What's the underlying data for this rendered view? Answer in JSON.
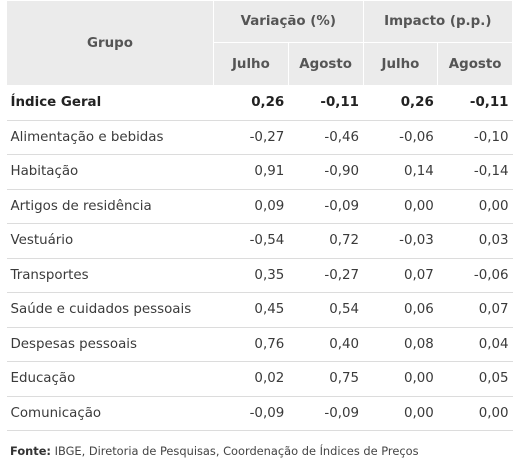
{
  "table": {
    "header": {
      "grupo": "Grupo",
      "variacao": "Variação (%)",
      "impacto": "Impacto (p.p.)",
      "julho": "Julho",
      "agosto": "Agosto"
    },
    "rows": [
      {
        "grupo": "Índice Geral",
        "var_julho": "0,26",
        "var_agosto": "-0,11",
        "imp_julho": "0,26",
        "imp_agosto": "-0,11"
      },
      {
        "grupo": "Alimentação e bebidas",
        "var_julho": "-0,27",
        "var_agosto": "-0,46",
        "imp_julho": "-0,06",
        "imp_agosto": "-0,10"
      },
      {
        "grupo": "Habitação",
        "var_julho": "0,91",
        "var_agosto": "-0,90",
        "imp_julho": "0,14",
        "imp_agosto": "-0,14"
      },
      {
        "grupo": "Artigos de residência",
        "var_julho": "0,09",
        "var_agosto": "-0,09",
        "imp_julho": "0,00",
        "imp_agosto": "0,00"
      },
      {
        "grupo": "Vestuário",
        "var_julho": "-0,54",
        "var_agosto": "0,72",
        "imp_julho": "-0,03",
        "imp_agosto": "0,03"
      },
      {
        "grupo": "Transportes",
        "var_julho": "0,35",
        "var_agosto": "-0,27",
        "imp_julho": "0,07",
        "imp_agosto": "-0,06"
      },
      {
        "grupo": "Saúde e cuidados pessoais",
        "var_julho": "0,45",
        "var_agosto": "0,54",
        "imp_julho": "0,06",
        "imp_agosto": "0,07"
      },
      {
        "grupo": "Despesas pessoais",
        "var_julho": "0,76",
        "var_agosto": "0,40",
        "imp_julho": "0,08",
        "imp_agosto": "0,04"
      },
      {
        "grupo": "Educação",
        "var_julho": "0,02",
        "var_agosto": "0,75",
        "imp_julho": "0,00",
        "imp_agosto": "0,05"
      },
      {
        "grupo": "Comunicação",
        "var_julho": "-0,09",
        "var_agosto": "-0,09",
        "imp_julho": "0,00",
        "imp_agosto": "0,00"
      }
    ]
  },
  "footer": {
    "fonte_label": "Fonte:",
    "fonte_text": " IBGE, Diretoria de Pesquisas, Coordenação de Índices de Preços"
  },
  "colors": {
    "header_bg": "#ebebeb",
    "row_divider": "#dcdcdc",
    "text": "#3a3a3a"
  }
}
